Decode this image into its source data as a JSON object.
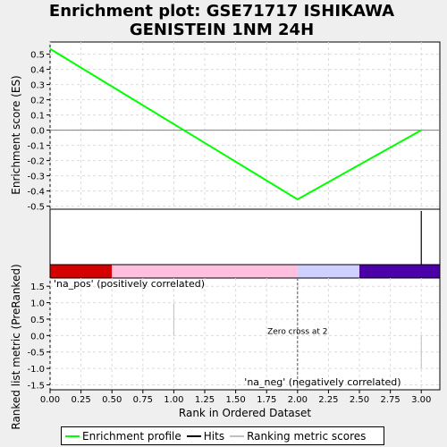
{
  "chart_data": {
    "type": "line",
    "title": "Enrichment plot: GSE71717 ISHIKAWA\nGENISTEIN 1NM 24H",
    "xlabel": "Rank in Ordered Dataset",
    "ylabel_top": "Enrichment score (ES)",
    "ylabel_bottom": "Ranked list metric (PreRanked)",
    "xlim": [
      0,
      3.15
    ],
    "x_ticks": [
      "0.00",
      "0.25",
      "0.50",
      "0.75",
      "1.00",
      "1.25",
      "1.50",
      "1.75",
      "2.00",
      "2.25",
      "2.50",
      "2.75",
      "3.00"
    ],
    "es": {
      "ylim": [
        -0.52,
        0.58
      ],
      "y_ticks": [
        "0.5",
        "0.4",
        "0.3",
        "0.2",
        "0.1",
        "0.0",
        "-0.1",
        "-0.2",
        "-0.3",
        "-0.4",
        "-0.5"
      ],
      "series": [
        {
          "x": [
            0,
            2,
            3
          ],
          "y": [
            0.535,
            -0.455,
            0.0
          ],
          "color": "#00ff00"
        }
      ],
      "grid": true
    },
    "hits": {
      "x": [
        3
      ]
    },
    "rank_bar": [
      {
        "from": 0,
        "to": 0.5,
        "color": "#d50000"
      },
      {
        "from": 0.5,
        "to": 2.0,
        "color": "#ffc0e0"
      },
      {
        "from": 2.0,
        "to": 2.5,
        "color": "#d0d0ff"
      },
      {
        "from": 2.5,
        "to": 3.15,
        "color": "#4b00a8"
      }
    ],
    "metric": {
      "ylim": [
        -1.65,
        1.75
      ],
      "y_ticks": [
        "1.5",
        "1.0",
        "0.5",
        "0.0",
        "-0.5",
        "-1.0",
        "-1.5"
      ],
      "bars": [
        {
          "x": 1,
          "y": 0.98
        },
        {
          "x": 3,
          "y": -1.0
        }
      ],
      "zero_cross_x": 2,
      "zero_cross_label": "Zero cross at 2",
      "pos_label": "'na_pos' (positively correlated)",
      "neg_label": "'na_neg' (negatively correlated)",
      "pos_color": "#c00000",
      "neg_color": "#0000a0"
    },
    "legend": [
      {
        "label": "Enrichment profile",
        "color": "#00ff00"
      },
      {
        "label": "Hits",
        "color": "#000000"
      },
      {
        "label": "Ranking metric scores",
        "color": "#c0c0c0"
      }
    ]
  }
}
